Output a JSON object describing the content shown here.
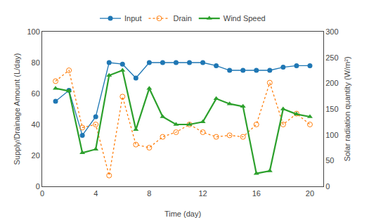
{
  "chart_data": {
    "type": "line",
    "xlabel": "Time (day)",
    "ylabel": "Supply/Drainage Amount (L/day)",
    "y2label": "Solar radiation quantity (W/m²)",
    "x": [
      1,
      2,
      3,
      4,
      5,
      6,
      7,
      8,
      9,
      10,
      11,
      12,
      13,
      14,
      15,
      16,
      17,
      18,
      19,
      20
    ],
    "series": [
      {
        "name": "Input",
        "values": [
          55,
          62,
          33,
          45,
          80,
          79,
          70,
          80,
          80,
          80,
          80,
          80,
          78,
          75,
          75,
          75,
          75,
          77,
          78,
          78
        ],
        "marker": "circle",
        "line_style": "solid"
      },
      {
        "name": "Drain",
        "values": [
          68,
          75,
          38,
          40,
          7,
          58,
          27,
          25,
          32,
          35,
          40,
          35,
          32,
          33,
          32,
          40,
          67,
          40,
          47,
          40
        ],
        "marker": "circle-open",
        "line_style": "dot"
      },
      {
        "name": "Wind Speed",
        "values": [
          190,
          185,
          65,
          72,
          215,
          225,
          110,
          190,
          135,
          120,
          120,
          125,
          170,
          160,
          155,
          25,
          30,
          150,
          140,
          135
        ],
        "axis": "y2",
        "marker": "triangle-up",
        "line_style": "solid"
      }
    ],
    "xlim": [
      0,
      21
    ],
    "xticks": [
      0,
      4,
      8,
      12,
      16,
      20
    ],
    "ylim": [
      0,
      100
    ],
    "yticks": [
      0,
      20,
      40,
      60,
      80,
      100
    ],
    "y2lim": [
      0,
      300
    ],
    "y2ticks": [
      0,
      50,
      100,
      150,
      200,
      250,
      300
    ],
    "grid": false,
    "legend": "top"
  }
}
